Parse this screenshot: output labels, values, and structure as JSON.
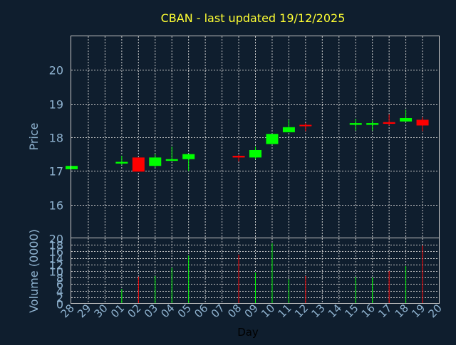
{
  "chart_data": {
    "type": "candlestick",
    "title": "CBAN - last updated 19/12/2025",
    "xlabel": "Day",
    "up_color": "#00ff00",
    "down_color": "#ff0000",
    "grid": true,
    "categories": [
      "28",
      "29",
      "30",
      "01",
      "02",
      "03",
      "04",
      "05",
      "06",
      "07",
      "08",
      "09",
      "10",
      "11",
      "12",
      "13",
      "14",
      "15",
      "16",
      "17",
      "18",
      "19",
      "20"
    ],
    "price_panel": {
      "ylabel": "Price",
      "ylim": [
        15,
        21
      ],
      "yticks": [
        16,
        17,
        18,
        19,
        20
      ],
      "candles": [
        {
          "day": "28",
          "open": 17.05,
          "high": 17.15,
          "low": 17.05,
          "close": 17.15
        },
        {
          "day": "01",
          "open": 17.22,
          "high": 17.45,
          "low": 17.18,
          "close": 17.27
        },
        {
          "day": "02",
          "open": 17.4,
          "high": 17.4,
          "low": 16.98,
          "close": 16.98
        },
        {
          "day": "03",
          "open": 17.15,
          "high": 17.5,
          "low": 17.1,
          "close": 17.4
        },
        {
          "day": "04",
          "open": 17.3,
          "high": 17.72,
          "low": 17.3,
          "close": 17.35
        },
        {
          "day": "05",
          "open": 17.35,
          "high": 17.5,
          "low": 17.0,
          "close": 17.5
        },
        {
          "day": "08",
          "open": 17.45,
          "high": 17.48,
          "low": 17.28,
          "close": 17.4
        },
        {
          "day": "09",
          "open": 17.4,
          "high": 17.72,
          "low": 17.35,
          "close": 17.62
        },
        {
          "day": "10",
          "open": 17.8,
          "high": 18.1,
          "low": 17.8,
          "close": 18.1
        },
        {
          "day": "11",
          "open": 18.15,
          "high": 18.52,
          "low": 18.15,
          "close": 18.3
        },
        {
          "day": "12",
          "open": 18.37,
          "high": 18.42,
          "low": 18.18,
          "close": 18.33
        },
        {
          "day": "15",
          "open": 18.37,
          "high": 18.55,
          "low": 18.2,
          "close": 18.42
        },
        {
          "day": "16",
          "open": 18.37,
          "high": 18.5,
          "low": 18.2,
          "close": 18.42
        },
        {
          "day": "17",
          "open": 18.45,
          "high": 18.68,
          "low": 18.35,
          "close": 18.4
        },
        {
          "day": "18",
          "open": 18.47,
          "high": 18.82,
          "low": 18.47,
          "close": 18.57
        },
        {
          "day": "19",
          "open": 18.52,
          "high": 18.6,
          "low": 18.18,
          "close": 18.35
        }
      ]
    },
    "volume_panel": {
      "ylabel": "Volume (0000)",
      "ylim": [
        0,
        20
      ],
      "yticks": [
        0,
        2,
        4,
        6,
        8,
        10,
        12,
        14,
        16,
        18,
        20
      ],
      "bars": [
        {
          "day": "28",
          "value": 0,
          "dir": "up"
        },
        {
          "day": "01",
          "value": 4.5,
          "dir": "up"
        },
        {
          "day": "02",
          "value": 8.3,
          "dir": "down"
        },
        {
          "day": "03",
          "value": 8.5,
          "dir": "up"
        },
        {
          "day": "04",
          "value": 11.0,
          "dir": "up"
        },
        {
          "day": "05",
          "value": 14.7,
          "dir": "up"
        },
        {
          "day": "08",
          "value": 15.0,
          "dir": "down"
        },
        {
          "day": "09",
          "value": 9.5,
          "dir": "up"
        },
        {
          "day": "10",
          "value": 18.5,
          "dir": "up"
        },
        {
          "day": "11",
          "value": 7.5,
          "dir": "up"
        },
        {
          "day": "12",
          "value": 8.5,
          "dir": "down"
        },
        {
          "day": "15",
          "value": 8.2,
          "dir": "up"
        },
        {
          "day": "16",
          "value": 8.0,
          "dir": "up"
        },
        {
          "day": "17",
          "value": 10.0,
          "dir": "down"
        },
        {
          "day": "18",
          "value": 11.5,
          "dir": "up"
        },
        {
          "day": "19",
          "value": 17.8,
          "dir": "down"
        }
      ]
    }
  }
}
